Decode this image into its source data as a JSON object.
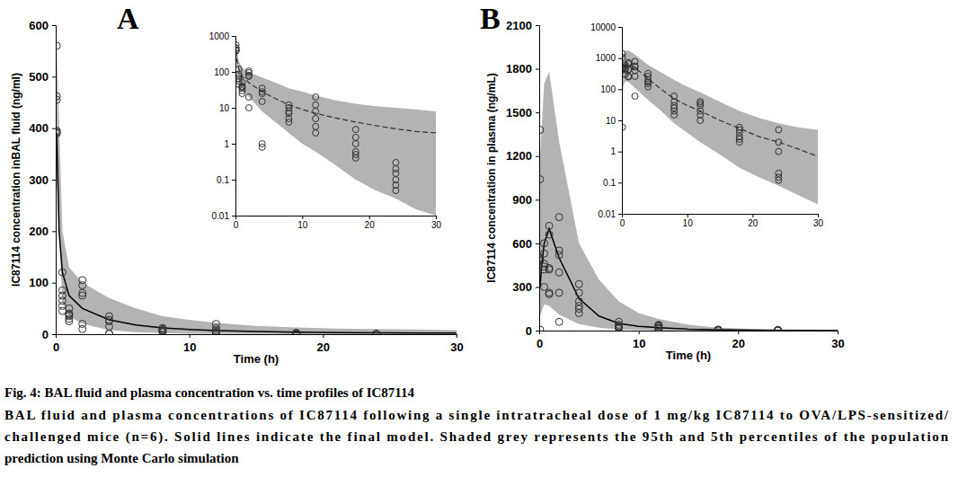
{
  "chart_data": [
    {
      "type": "scatter",
      "title": "A",
      "xlabel": "Time (h)",
      "ylabel": "IC87114 concentration inBAL fluid (ng/ml)",
      "xlim": [
        0,
        30
      ],
      "ylim": [
        0,
        600
      ],
      "xticks": [
        0,
        10,
        20,
        30
      ],
      "yticks": [
        0,
        100,
        200,
        300,
        400,
        500,
        600
      ],
      "series": [
        {
          "type": "area",
          "color": "#b3b3b3",
          "x": [
            0.08,
            0.5,
            1,
            2,
            4,
            6,
            8,
            10,
            12,
            15,
            18,
            21,
            24,
            27,
            30
          ],
          "upper": [
            560,
            200,
            130,
            100,
            70,
            50,
            35,
            28,
            22,
            16,
            13,
            11,
            10,
            9,
            8
          ],
          "lower": [
            300,
            60,
            35,
            20,
            8,
            4,
            2,
            1,
            0.6,
            0.25,
            0.1,
            0.05,
            0.03,
            0.015,
            0.01
          ]
        },
        {
          "type": "line",
          "color": "#000000",
          "line_style": "solid",
          "x": [
            0.08,
            0.25,
            0.5,
            1,
            2,
            4,
            6,
            8,
            10,
            12,
            15,
            18,
            21,
            24,
            27,
            30
          ],
          "values": [
            390,
            200,
            120,
            75,
            50,
            28,
            18,
            12,
            9,
            7,
            5.2,
            4,
            3.2,
            2.6,
            2.2,
            2
          ]
        },
        {
          "type": "scatter",
          "color": "#333333",
          "marker": "circle",
          "x": [
            0.08,
            0.08,
            0.08,
            0.08,
            0.08,
            0.08,
            0.5,
            0.5,
            0.5,
            0.5,
            0.5,
            0.5,
            1,
            1,
            1,
            1,
            1,
            1,
            2,
            2,
            2,
            2,
            2,
            2,
            4,
            4,
            4,
            4,
            4,
            4,
            8,
            8,
            8,
            8,
            8,
            8,
            12,
            12,
            12,
            12,
            12,
            12,
            18,
            18,
            18,
            18,
            18,
            18,
            24,
            24,
            24,
            24,
            24,
            24
          ],
          "values": [
            560,
            462,
            455,
            395,
            392,
            390,
            120,
            85,
            75,
            65,
            55,
            45,
            50,
            40,
            38,
            35,
            30,
            25,
            105,
            95,
            80,
            75,
            20,
            10,
            35,
            28,
            25,
            15,
            1,
            0.8,
            12,
            10,
            8,
            7,
            5,
            4,
            20,
            12,
            8,
            5,
            3,
            2,
            2.5,
            1.5,
            1,
            0.6,
            0.5,
            0.4,
            0.3,
            0.2,
            0.15,
            0.1,
            0.07,
            0.05
          ]
        }
      ]
    },
    {
      "type": "scatter",
      "log": "y",
      "xlim": [
        0,
        30
      ],
      "ylim": [
        0.01,
        1000
      ],
      "xticks": [
        0,
        10,
        20,
        30
      ],
      "yticks": [
        0.01,
        0.1,
        1,
        10,
        100,
        1000
      ],
      "series": [
        {
          "type": "area",
          "color": "#b3b3b3",
          "x": [
            0.08,
            0.5,
            1,
            2,
            4,
            6,
            8,
            10,
            12,
            15,
            18,
            21,
            24,
            27,
            30
          ],
          "upper": [
            560,
            200,
            130,
            100,
            70,
            50,
            35,
            28,
            22,
            16,
            13,
            11,
            10,
            9,
            8
          ],
          "lower": [
            300,
            60,
            35,
            20,
            8,
            4,
            2,
            1,
            0.6,
            0.25,
            0.1,
            0.05,
            0.03,
            0.015,
            0.01
          ]
        },
        {
          "type": "line",
          "color": "#333333",
          "line_style": "dashed",
          "x": [
            0.08,
            0.25,
            0.5,
            1,
            2,
            4,
            6,
            8,
            10,
            12,
            15,
            18,
            21,
            24,
            27,
            30
          ],
          "values": [
            390,
            200,
            120,
            75,
            50,
            28,
            18,
            12,
            9,
            7,
            5.2,
            4,
            3.2,
            2.6,
            2.2,
            2
          ]
        },
        {
          "type": "scatter",
          "color": "#333333",
          "marker": "circle",
          "x": [
            0.08,
            0.08,
            0.08,
            0.08,
            0.08,
            0.08,
            0.5,
            0.5,
            0.5,
            0.5,
            0.5,
            0.5,
            1,
            1,
            1,
            1,
            1,
            1,
            2,
            2,
            2,
            2,
            2,
            2,
            4,
            4,
            4,
            4,
            4,
            4,
            8,
            8,
            8,
            8,
            8,
            8,
            12,
            12,
            12,
            12,
            12,
            12,
            18,
            18,
            18,
            18,
            18,
            18,
            24,
            24,
            24,
            24,
            24,
            24
          ],
          "values": [
            560,
            462,
            455,
            395,
            392,
            390,
            120,
            85,
            75,
            65,
            55,
            45,
            50,
            40,
            38,
            35,
            30,
            25,
            105,
            95,
            80,
            75,
            20,
            10,
            35,
            28,
            25,
            15,
            1,
            0.8,
            12,
            10,
            8,
            7,
            5,
            4,
            20,
            12,
            8,
            5,
            3,
            2,
            2.5,
            1.5,
            1,
            0.6,
            0.5,
            0.4,
            0.3,
            0.2,
            0.15,
            0.1,
            0.07,
            0.05
          ]
        }
      ]
    },
    {
      "type": "scatter",
      "title": "B",
      "xlabel": "Time (h)",
      "ylabel": "IC87114 concentration in plasma (ng/mL)",
      "xlim": [
        0,
        30
      ],
      "ylim": [
        0,
        2100
      ],
      "xticks": [
        0,
        10,
        20,
        30
      ],
      "yticks": [
        0,
        300,
        600,
        900,
        1200,
        1500,
        1800,
        2100
      ],
      "series": [
        {
          "type": "area",
          "color": "#b3b3b3",
          "x": [
            0.08,
            0.5,
            1,
            2,
            4,
            6,
            8,
            10,
            12,
            15,
            18,
            21,
            24,
            27,
            30
          ],
          "upper": [
            1200,
            1700,
            1780,
            1300,
            600,
            350,
            200,
            120,
            80,
            40,
            20,
            12,
            8,
            6,
            5
          ],
          "lower": [
            100,
            180,
            170,
            110,
            45,
            20,
            8,
            4,
            2,
            0.8,
            0.3,
            0.15,
            0.08,
            0.04,
            0.02
          ]
        },
        {
          "type": "line",
          "color": "#000000",
          "line_style": "solid",
          "x": [
            0.08,
            0.25,
            0.5,
            1,
            2,
            4,
            6,
            8,
            10,
            12,
            15,
            18,
            21,
            24,
            27,
            30
          ],
          "values": [
            300,
            450,
            600,
            700,
            500,
            220,
            100,
            50,
            30,
            20,
            10,
            5.5,
            3,
            2,
            1.2,
            0.7
          ]
        },
        {
          "type": "scatter",
          "color": "#333333",
          "marker": "circle",
          "x": [
            0.08,
            0.08,
            0.08,
            0.08,
            0.08,
            0.08,
            0.5,
            0.5,
            0.5,
            0.5,
            0.5,
            0.5,
            1,
            1,
            1,
            1,
            1,
            1,
            2,
            2,
            2,
            2,
            2,
            2,
            4,
            4,
            4,
            4,
            4,
            4,
            8,
            8,
            8,
            8,
            8,
            8,
            12,
            12,
            12,
            12,
            12,
            12,
            18,
            18,
            18,
            18,
            18,
            18,
            24,
            24,
            24,
            24,
            24,
            24
          ],
          "values": [
            1380,
            1040,
            500,
            490,
            480,
            6,
            600,
            530,
            460,
            440,
            420,
            300,
            720,
            660,
            430,
            420,
            260,
            250,
            780,
            550,
            520,
            400,
            260,
            60,
            320,
            260,
            200,
            170,
            150,
            120,
            60,
            40,
            30,
            25,
            20,
            15,
            40,
            35,
            30,
            20,
            15,
            10,
            6,
            5,
            4,
            3,
            2.5,
            2,
            5,
            2,
            1,
            0.2,
            0.15,
            0.12
          ]
        }
      ]
    },
    {
      "type": "scatter",
      "log": "y",
      "xlim": [
        0,
        30
      ],
      "ylim": [
        0.01,
        10000
      ],
      "xticks": [
        0,
        10,
        20,
        30
      ],
      "yticks": [
        0.01,
        0.1,
        1,
        10,
        100,
        1000,
        10000
      ],
      "series": [
        {
          "type": "area",
          "color": "#b3b3b3",
          "x": [
            0.08,
            0.5,
            1,
            2,
            4,
            6,
            8,
            10,
            12,
            15,
            18,
            21,
            24,
            27,
            30
          ],
          "upper": [
            1200,
            1700,
            1780,
            1300,
            600,
            350,
            200,
            120,
            80,
            40,
            20,
            12,
            8,
            6,
            5
          ],
          "lower": [
            100,
            180,
            170,
            110,
            45,
            20,
            8,
            4,
            2,
            0.8,
            0.3,
            0.15,
            0.08,
            0.04,
            0.02
          ]
        },
        {
          "type": "line",
          "color": "#333333",
          "line_style": "dashed",
          "x": [
            0.08,
            0.25,
            0.5,
            1,
            2,
            4,
            6,
            8,
            10,
            12,
            15,
            18,
            21,
            24,
            27,
            30
          ],
          "values": [
            300,
            450,
            600,
            700,
            500,
            220,
            100,
            50,
            30,
            20,
            10,
            5.5,
            3,
            2,
            1.2,
            0.7
          ]
        },
        {
          "type": "scatter",
          "color": "#333333",
          "marker": "circle",
          "x": [
            0.08,
            0.08,
            0.08,
            0.08,
            0.08,
            0.08,
            0.5,
            0.5,
            0.5,
            0.5,
            0.5,
            0.5,
            1,
            1,
            1,
            1,
            1,
            1,
            2,
            2,
            2,
            2,
            2,
            2,
            4,
            4,
            4,
            4,
            4,
            4,
            8,
            8,
            8,
            8,
            8,
            8,
            12,
            12,
            12,
            12,
            12,
            12,
            18,
            18,
            18,
            18,
            18,
            18,
            24,
            24,
            24,
            24,
            24,
            24
          ],
          "values": [
            1380,
            1040,
            500,
            490,
            480,
            6,
            600,
            530,
            460,
            440,
            420,
            300,
            720,
            660,
            430,
            420,
            260,
            250,
            780,
            550,
            520,
            400,
            260,
            60,
            320,
            260,
            200,
            170,
            150,
            120,
            60,
            40,
            30,
            25,
            20,
            15,
            40,
            35,
            30,
            20,
            15,
            10,
            6,
            5,
            4,
            3,
            2.5,
            2,
            5,
            2,
            1,
            0.2,
            0.15,
            0.12
          ]
        }
      ]
    }
  ],
  "caption": {
    "title": "Fig. 4: BAL fluid and plasma concentration vs. time profiles of IC87114",
    "lines": [
      "BAL fluid and plasma concentrations of IC87114 following a single intratracheal dose of 1 mg/kg IC87114 to OVA/LPS-sensitized/",
      "challenged mice (n=6). Solid lines indicate the final model. Shaded grey represents the 95th and 5th percentiles of the population",
      "prediction using Monte Carlo simulation"
    ]
  }
}
